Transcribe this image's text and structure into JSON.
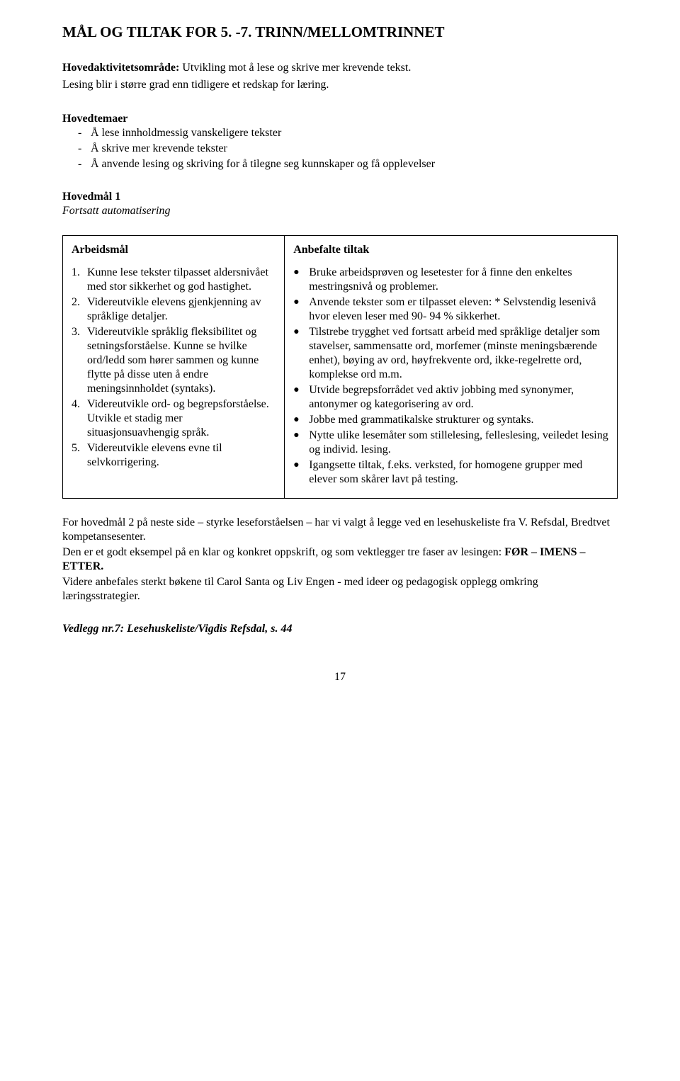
{
  "title": "MÅL OG TILTAK FOR 5. -7. TRINN/MELLOMTRINNET",
  "intro_line1_label": "Hovedaktivitetsområde:",
  "intro_line1_text": " Utvikling mot å lese og skrive mer krevende tekst.",
  "intro_line2": "Lesing blir i større grad enn tidligere et redskap for læring.",
  "hovedtemaer_label": "Hovedtemaer",
  "hovedtemaer_items": [
    "Å lese innholdmessig vanskeligere tekster",
    "Å skrive mer krevende tekster",
    "Å anvende lesing og skriving for å tilegne seg kunnskaper og få opplevelser"
  ],
  "hovedmal1_label": "Hovedmål 1",
  "hovedmal1_sub": "Fortsatt automatisering",
  "col_left_head": "Arbeidsmål",
  "col_right_head": "Anbefalte tiltak",
  "arbeidsmal": [
    "Kunne lese tekster tilpasset aldersnivået med stor sikkerhet og god hastighet.",
    "Videreutvikle elevens gjenkjenning av språklige detaljer.",
    "Videreutvikle språklig fleksibilitet og setningsforståelse. Kunne se hvilke ord/ledd som hører sammen og kunne flytte på disse uten å endre meningsinnholdet (syntaks).",
    "Videreutvikle ord- og begrepsforståelse. Utvikle et stadig mer situasjonsuavhengig språk.",
    "Videreutvikle elevens evne til selvkorrigering."
  ],
  "tiltak": [
    "Bruke arbeidsprøven og lesetester for å finne den enkeltes mestringsnivå og problemer.",
    "Anvende tekster som er tilpasset eleven: * Selvstendig lesenivå hvor eleven leser med 90- 94 % sikkerhet.",
    "Tilstrebe trygghet ved fortsatt arbeid med språklige detaljer som stavelser, sammensatte ord, morfemer (minste meningsbærende enhet), bøying av ord, høyfrekvente ord, ikke-regelrette ord, komplekse ord m.m.",
    "Utvide begrepsforrådet ved aktiv jobbing med synonymer, antonymer og kategorisering av ord.",
    "Jobbe med grammatikalske strukturer og syntaks.",
    "Nytte ulike lesemåter som stillelesing, felleslesing, veiledet lesing og individ. lesing.",
    "Igangsette tiltak, f.eks. verksted, for homogene grupper med elever som skårer lavt på testing."
  ],
  "after1": "For hovedmål 2 på neste side – styrke leseforståelsen – har vi valgt å legge ved en lesehuskeliste fra V. Refsdal, Bredtvet kompetansesenter.",
  "after2_pre": "Den er et godt eksempel på en klar og konkret oppskrift, og som vektlegger tre faser av lesingen: ",
  "after2_bold": "FØR – IMENS – ETTER.",
  "after3": "Videre anbefales sterkt bøkene til Carol Santa og Liv Engen - med ideer og pedagogisk opplegg omkring læringsstrategier.",
  "vedlegg": "Vedlegg nr.7: Lesehuskeliste/Vigdis Refsdal, s. 44",
  "page_number": "17"
}
